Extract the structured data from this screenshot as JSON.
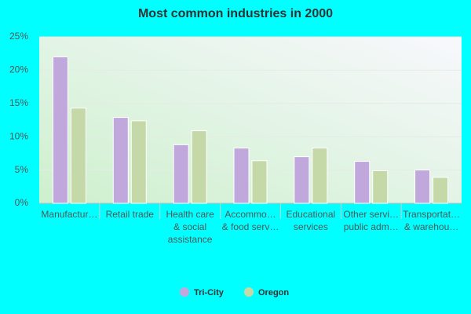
{
  "chart_data": {
    "type": "bar",
    "title": "Most common industries in 2000",
    "categories": [
      [
        "Manufactur…"
      ],
      [
        "Retail trade"
      ],
      [
        "Health care",
        "& social",
        "assistance"
      ],
      [
        "Accommo…",
        "& food serv…"
      ],
      [
        "Educational",
        "services"
      ],
      [
        "Other servi…",
        "public adm…"
      ],
      [
        "Transportat…",
        "& warehou…"
      ]
    ],
    "series": [
      {
        "name": "Tri-City",
        "color": "#c0a8dc",
        "values": [
          22,
          12.9,
          8.8,
          8.3,
          7.0,
          6.3,
          5.0
        ]
      },
      {
        "name": "Oregon",
        "color": "#c5d9a8",
        "values": [
          14.3,
          12.4,
          10.9,
          6.4,
          8.3,
          4.9,
          3.9
        ]
      }
    ],
    "ylim": [
      0,
      25
    ],
    "yticks": [
      {
        "value": 0,
        "label": "0%"
      },
      {
        "value": 5,
        "label": "5%"
      },
      {
        "value": 10,
        "label": "10%"
      },
      {
        "value": 15,
        "label": "15%"
      },
      {
        "value": 20,
        "label": "20%"
      },
      {
        "value": 25,
        "label": "25%"
      }
    ],
    "grid": true
  }
}
